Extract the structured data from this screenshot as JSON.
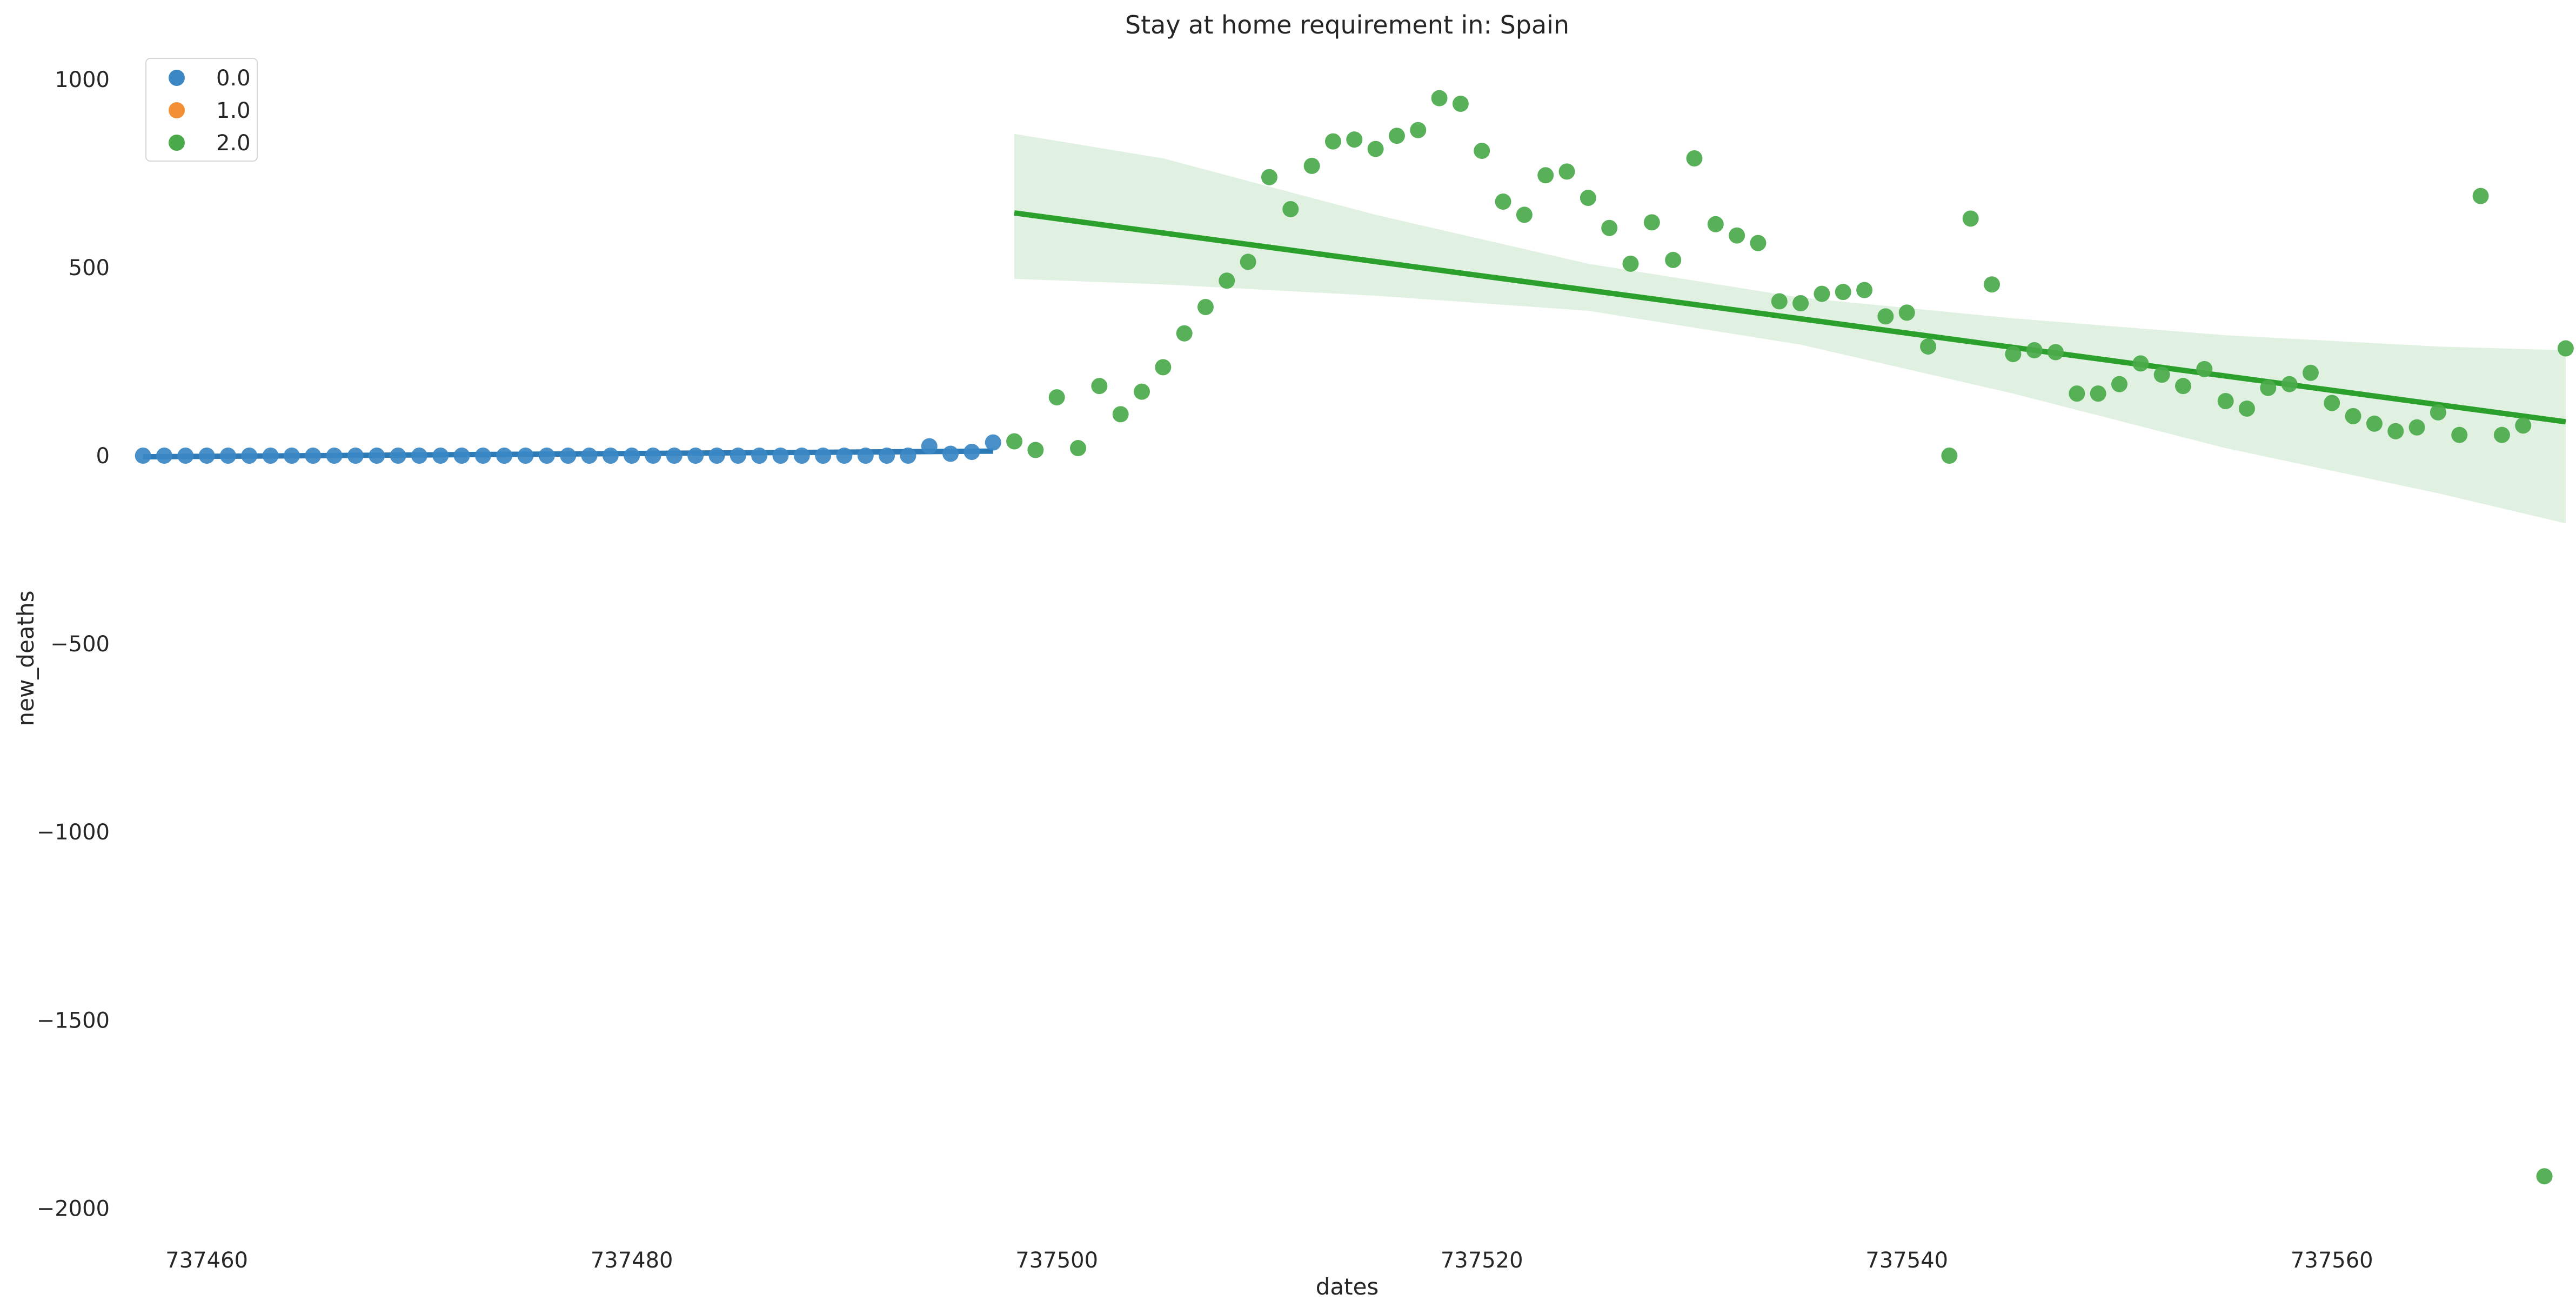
{
  "chart_data": {
    "type": "scatter",
    "title": "Stay at home requirement in: Spain",
    "xlabel": "dates",
    "ylabel": "new_deaths",
    "xlim": [
      737456.5,
      737570.8
    ],
    "ylim": [
      -2100,
      1060
    ],
    "x_ticks": [
      737460,
      737480,
      737500,
      737520,
      737540,
      737560
    ],
    "y_ticks": [
      1000,
      500,
      0,
      -500,
      -1000,
      -1500,
      -2000
    ],
    "x_tick_labels": [
      "737460",
      "737480",
      "737500",
      "737520",
      "737540",
      "737560"
    ],
    "y_tick_labels": [
      "1000",
      "500",
      "0",
      "−500",
      "−1000",
      "−1500",
      "−2000"
    ],
    "grid": false,
    "legend_position": "top-left",
    "series": [
      {
        "name": "0.0",
        "color": "#3a87c4",
        "line_color": "#2c7bb6",
        "points": [
          [
            737457,
            0
          ],
          [
            737458,
            0
          ],
          [
            737459,
            0
          ],
          [
            737460,
            0
          ],
          [
            737461,
            0
          ],
          [
            737462,
            0
          ],
          [
            737463,
            0
          ],
          [
            737464,
            0
          ],
          [
            737465,
            0
          ],
          [
            737466,
            0
          ],
          [
            737467,
            0
          ],
          [
            737468,
            0
          ],
          [
            737469,
            0
          ],
          [
            737470,
            0
          ],
          [
            737471,
            0
          ],
          [
            737472,
            0
          ],
          [
            737473,
            0
          ],
          [
            737474,
            0
          ],
          [
            737475,
            0
          ],
          [
            737476,
            0
          ],
          [
            737477,
            0
          ],
          [
            737478,
            0
          ],
          [
            737479,
            0
          ],
          [
            737480,
            0
          ],
          [
            737481,
            0
          ],
          [
            737482,
            0
          ],
          [
            737483,
            0
          ],
          [
            737484,
            0
          ],
          [
            737485,
            0
          ],
          [
            737486,
            0
          ],
          [
            737487,
            0
          ],
          [
            737488,
            0
          ],
          [
            737489,
            0
          ],
          [
            737490,
            0
          ],
          [
            737491,
            0
          ],
          [
            737492,
            0
          ],
          [
            737493,
            0
          ],
          [
            737494,
            25
          ],
          [
            737495,
            5
          ],
          [
            737496,
            10
          ],
          [
            737497,
            35
          ]
        ],
        "fit": [
          [
            737457,
            -3
          ],
          [
            737497,
            12
          ]
        ]
      },
      {
        "name": "1.0",
        "color": "#f39036",
        "points": []
      },
      {
        "name": "2.0",
        "color": "#4aaa4a",
        "line_color": "#2ca02c",
        "band_color": "#dff0df",
        "points": [
          [
            737498,
            38
          ],
          [
            737499,
            15
          ],
          [
            737500,
            155
          ],
          [
            737501,
            20
          ],
          [
            737502,
            185
          ],
          [
            737503,
            110
          ],
          [
            737504,
            170
          ],
          [
            737505,
            235
          ],
          [
            737506,
            325
          ],
          [
            737507,
            395
          ],
          [
            737508,
            465
          ],
          [
            737509,
            515
          ],
          [
            737510,
            740
          ],
          [
            737511,
            655
          ],
          [
            737512,
            770
          ],
          [
            737513,
            835
          ],
          [
            737514,
            840
          ],
          [
            737515,
            815
          ],
          [
            737516,
            850
          ],
          [
            737517,
            865
          ],
          [
            737518,
            950
          ],
          [
            737519,
            935
          ],
          [
            737520,
            810
          ],
          [
            737521,
            675
          ],
          [
            737522,
            640
          ],
          [
            737523,
            745
          ],
          [
            737524,
            755
          ],
          [
            737525,
            685
          ],
          [
            737526,
            605
          ],
          [
            737527,
            510
          ],
          [
            737528,
            620
          ],
          [
            737529,
            520
          ],
          [
            737530,
            790
          ],
          [
            737531,
            615
          ],
          [
            737532,
            585
          ],
          [
            737533,
            565
          ],
          [
            737534,
            410
          ],
          [
            737535,
            405
          ],
          [
            737536,
            430
          ],
          [
            737537,
            435
          ],
          [
            737538,
            440
          ],
          [
            737539,
            370
          ],
          [
            737540,
            380
          ],
          [
            737541,
            290
          ],
          [
            737542,
            0
          ],
          [
            737543,
            630
          ],
          [
            737544,
            455
          ],
          [
            737545,
            270
          ],
          [
            737546,
            280
          ],
          [
            737547,
            275
          ],
          [
            737548,
            165
          ],
          [
            737549,
            165
          ],
          [
            737550,
            190
          ],
          [
            737551,
            245
          ],
          [
            737552,
            215
          ],
          [
            737553,
            185
          ],
          [
            737554,
            230
          ],
          [
            737555,
            145
          ],
          [
            737556,
            125
          ],
          [
            737557,
            180
          ],
          [
            737558,
            190
          ],
          [
            737559,
            220
          ],
          [
            737560,
            140
          ],
          [
            737561,
            105
          ],
          [
            737562,
            85
          ],
          [
            737563,
            65
          ],
          [
            737564,
            75
          ],
          [
            737565,
            115
          ],
          [
            737566,
            55
          ],
          [
            737567,
            690
          ],
          [
            737568,
            55
          ],
          [
            737569,
            80
          ],
          [
            737570,
            -1915
          ],
          [
            737571,
            285
          ]
        ],
        "fit": [
          [
            737498,
            645
          ],
          [
            737571,
            90
          ]
        ],
        "ci_band": [
          {
            "x": 737498,
            "lo": 470,
            "hi": 855
          },
          {
            "x": 737505,
            "lo": 455,
            "hi": 790
          },
          {
            "x": 737515,
            "lo": 425,
            "hi": 640
          },
          {
            "x": 737525,
            "lo": 385,
            "hi": 510
          },
          {
            "x": 737535,
            "lo": 295,
            "hi": 420
          },
          {
            "x": 737545,
            "lo": 165,
            "hi": 365
          },
          {
            "x": 737555,
            "lo": 20,
            "hi": 320
          },
          {
            "x": 737565,
            "lo": -100,
            "hi": 290
          },
          {
            "x": 737571,
            "lo": -180,
            "hi": 280
          }
        ]
      }
    ]
  }
}
